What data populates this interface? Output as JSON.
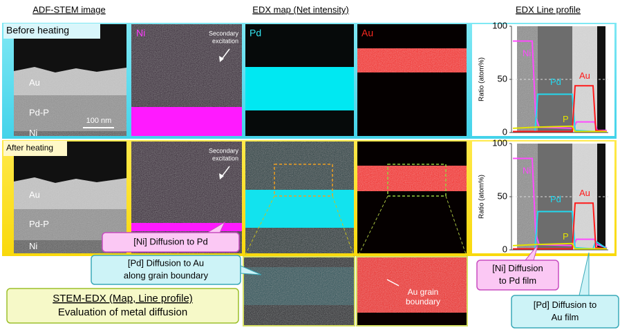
{
  "headers": {
    "stem": "ADF-STEM image",
    "edx_map": "EDX map (Net intensity)",
    "line_profile": "EDX Line profile"
  },
  "rows": [
    {
      "label": "Before heating",
      "stem_labels": [
        "Au",
        "Pd-P",
        "Ni"
      ],
      "scale_bar": "100 nm",
      "map_labels": [
        "Ni",
        "Pd",
        "Au"
      ],
      "annotation": [
        "Secondary",
        "excitation"
      ],
      "profile": {
        "y_label": "Ratio (atom%)",
        "yticks": [
          0,
          50,
          100
        ],
        "labels": [
          "Ni",
          "Pd",
          "Au",
          "P"
        ]
      }
    },
    {
      "label": "After heating",
      "stem_labels": [
        "Au",
        "Pd-P",
        "Ni"
      ],
      "annotation": [
        "Secondary",
        "excitation"
      ],
      "profile": {
        "y_label": "Ratio (atom%)",
        "yticks": [
          0,
          50,
          100
        ],
        "labels": [
          "Ni",
          "Pd",
          "Au",
          "P"
        ]
      }
    }
  ],
  "zoom": {
    "annotation": [
      "Au grain",
      "boundary"
    ]
  },
  "callouts": [
    {
      "lines": [
        "[Ni] Diffusion to Pd"
      ]
    },
    {
      "lines": [
        "[Pd] Diffusion to Au",
        "along grain boundary"
      ]
    },
    {
      "lines": [
        "STEM-EDX (Map, Line profile)",
        "Evaluation of metal diffusion"
      ]
    },
    {
      "lines": [
        "[Ni] Diffusion",
        "to Pd film"
      ]
    },
    {
      "lines": [
        "[Pd] Diffusion to",
        "Au film"
      ]
    }
  ]
}
